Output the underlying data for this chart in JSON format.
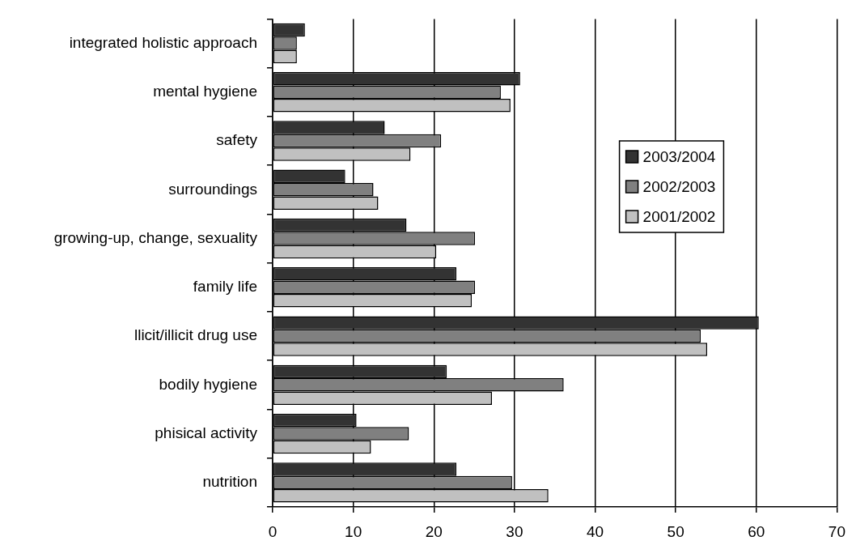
{
  "chart_data": {
    "type": "bar",
    "orientation": "horizontal",
    "categories": [
      "integrated holistic approach",
      "mental hygiene",
      "safety",
      "surroundings",
      "growing-up, change, sexuality",
      "family life",
      "llicit/illicit drug use",
      "bodily hygiene",
      "phisical activity",
      "nutrition"
    ],
    "series": [
      {
        "name": "2003/2004",
        "color": "#333333",
        "values": [
          4.0,
          30.7,
          13.9,
          9.0,
          16.6,
          22.8,
          60.3,
          21.6,
          10.4,
          22.8
        ]
      },
      {
        "name": "2002/2003",
        "color": "#808080",
        "values": [
          3.0,
          28.3,
          20.9,
          12.5,
          25.1,
          25.1,
          53.1,
          36.1,
          16.9,
          29.7
        ]
      },
      {
        "name": "2001/2002",
        "color": "#c0c0c0",
        "values": [
          3.0,
          29.5,
          17.1,
          13.1,
          20.3,
          24.7,
          53.9,
          27.2,
          12.2,
          34.2
        ]
      }
    ],
    "xlim": [
      0,
      70
    ],
    "xticks": [
      0,
      10,
      20,
      30,
      40,
      50,
      60,
      70
    ],
    "grid": "x",
    "legend": "right"
  }
}
